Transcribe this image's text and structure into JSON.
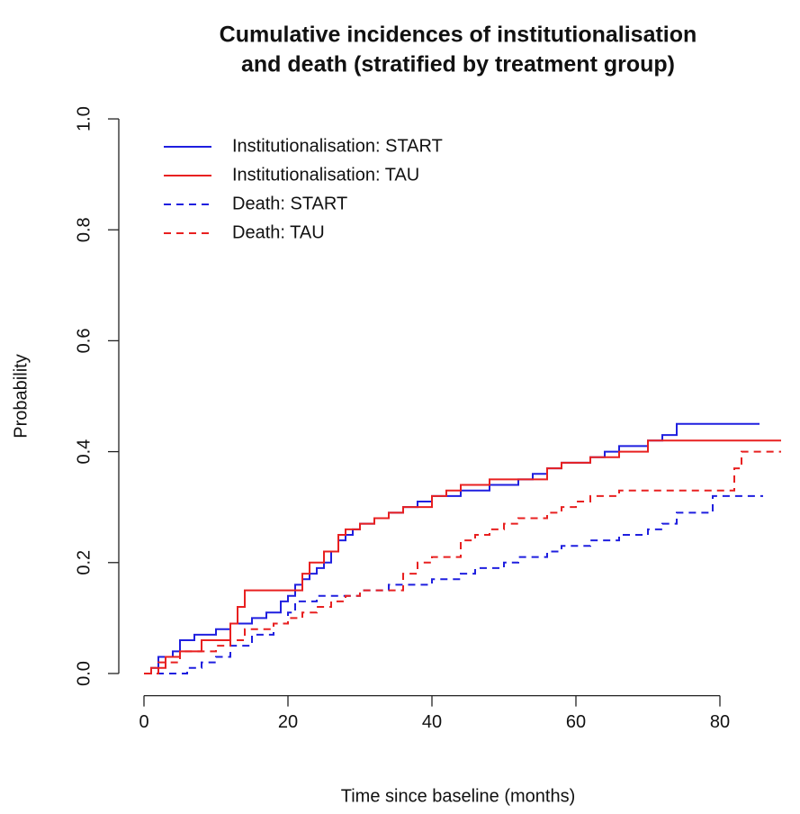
{
  "chart_data": {
    "type": "step",
    "title": [
      "Cumulative incidences of institutionalisation",
      "and death (stratified by treatment group)"
    ],
    "x_label": "Time since baseline (months)",
    "y_label": "Probability",
    "xlim": [
      -3.5,
      92
    ],
    "ylim": [
      -0.04,
      1.04
    ],
    "xticks": [
      0,
      20,
      40,
      60,
      80
    ],
    "yticks": [
      {
        "value": 0,
        "label": "0.0"
      },
      {
        "value": 0.2,
        "label": "0.2"
      },
      {
        "value": 0.4,
        "label": "0.4"
      },
      {
        "value": 0.6,
        "label": "0.6"
      },
      {
        "value": 0.8,
        "label": "0.8"
      },
      {
        "value": 1,
        "label": "1.0"
      }
    ],
    "legend": "top-left",
    "series": [
      {
        "name": "Institutionalisation: START",
        "color": "#1f1fdf",
        "linestyle": "solid",
        "x": [
          0,
          1,
          2,
          4,
          5,
          7,
          10,
          12,
          15,
          17,
          19,
          20,
          21,
          22,
          23,
          24,
          25,
          26,
          27,
          28,
          29,
          30,
          32,
          34,
          36,
          38,
          40,
          42,
          44,
          46,
          48,
          50,
          52,
          54,
          56,
          58,
          60,
          62,
          64,
          66,
          68,
          70,
          72,
          74,
          85.5
        ],
        "values": [
          0,
          0.01,
          0.03,
          0.04,
          0.06,
          0.07,
          0.08,
          0.09,
          0.1,
          0.11,
          0.13,
          0.14,
          0.16,
          0.17,
          0.18,
          0.19,
          0.2,
          0.22,
          0.24,
          0.25,
          0.26,
          0.27,
          0.28,
          0.29,
          0.3,
          0.31,
          0.32,
          0.32,
          0.33,
          0.33,
          0.34,
          0.34,
          0.35,
          0.36,
          0.37,
          0.38,
          0.38,
          0.39,
          0.4,
          0.41,
          0.41,
          0.42,
          0.43,
          0.45,
          0.45
        ]
      },
      {
        "name": "Institutionalisation: TAU",
        "color": "#e82020",
        "linestyle": "solid",
        "x": [
          0,
          1,
          3,
          5,
          8,
          12,
          13,
          14,
          17,
          20,
          22,
          23,
          25,
          27,
          28,
          30,
          32,
          34,
          36,
          38,
          40,
          42,
          44,
          46,
          48,
          52,
          56,
          58,
          60,
          62,
          64,
          66,
          68,
          70,
          88.5
        ],
        "values": [
          0,
          0.01,
          0.03,
          0.04,
          0.06,
          0.09,
          0.12,
          0.15,
          0.15,
          0.15,
          0.18,
          0.2,
          0.22,
          0.25,
          0.26,
          0.27,
          0.28,
          0.29,
          0.3,
          0.3,
          0.32,
          0.33,
          0.34,
          0.34,
          0.35,
          0.35,
          0.37,
          0.38,
          0.38,
          0.39,
          0.39,
          0.4,
          0.4,
          0.42,
          0.42
        ]
      },
      {
        "name": "Death: START",
        "color": "#1f1fdf",
        "linestyle": "dashed",
        "x": [
          0,
          4,
          6,
          8,
          10,
          12,
          15,
          18,
          20,
          21,
          24,
          28,
          30,
          32,
          34,
          36,
          40,
          44,
          46,
          48,
          50,
          52,
          54,
          56,
          58,
          60,
          62,
          64,
          66,
          68,
          70,
          72,
          74,
          76,
          79,
          86
        ],
        "values": [
          0,
          0,
          0.01,
          0.02,
          0.03,
          0.05,
          0.07,
          0.09,
          0.11,
          0.13,
          0.14,
          0.14,
          0.15,
          0.15,
          0.16,
          0.16,
          0.17,
          0.18,
          0.19,
          0.19,
          0.2,
          0.21,
          0.21,
          0.22,
          0.23,
          0.23,
          0.24,
          0.24,
          0.25,
          0.25,
          0.26,
          0.27,
          0.29,
          0.29,
          0.32,
          0.32
        ]
      },
      {
        "name": "Death: TAU",
        "color": "#e82020",
        "linestyle": "dashed",
        "x": [
          0,
          2,
          5,
          10,
          12,
          14,
          18,
          20,
          22,
          24,
          26,
          28,
          30,
          34,
          36,
          38,
          40,
          42,
          44,
          46,
          48,
          50,
          52,
          54,
          56,
          58,
          60,
          62,
          66,
          70,
          82,
          83,
          88.5
        ],
        "values": [
          0,
          0.02,
          0.04,
          0.05,
          0.06,
          0.08,
          0.09,
          0.1,
          0.11,
          0.12,
          0.13,
          0.14,
          0.15,
          0.15,
          0.18,
          0.2,
          0.21,
          0.21,
          0.24,
          0.25,
          0.26,
          0.27,
          0.28,
          0.28,
          0.29,
          0.3,
          0.31,
          0.32,
          0.33,
          0.33,
          0.37,
          0.4,
          0.4
        ]
      }
    ]
  }
}
